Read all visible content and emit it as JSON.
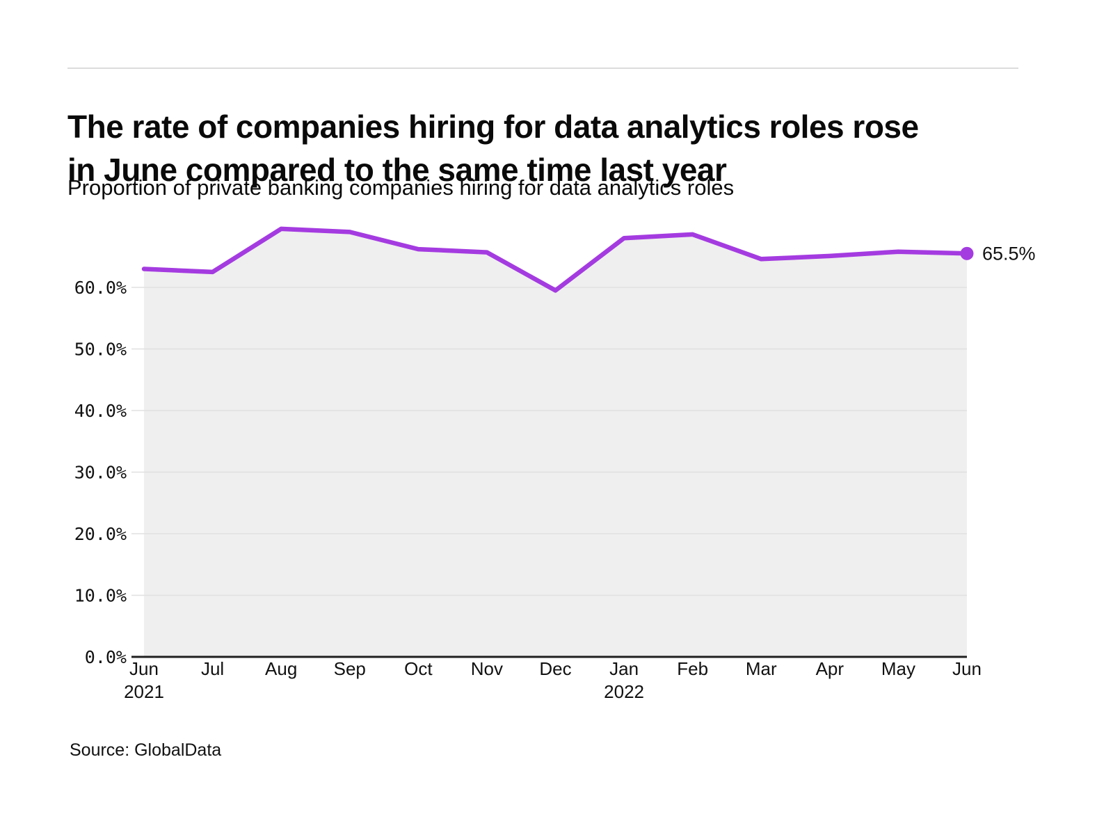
{
  "page": {
    "title_lines": [
      "The rate of companies hiring for data analytics roles rose",
      "in June compared to the same time last year"
    ],
    "subtitle": "Proportion of private banking companies hiring for data analytics roles",
    "source": "Source: GlobalData"
  },
  "chart_data": {
    "type": "line",
    "title": "The rate of companies hiring for data analytics roles rose in June compared to the same time last year",
    "subtitle": "Proportion of private banking companies hiring for data analytics roles",
    "x_labels": [
      "Jun",
      "Jul",
      "Aug",
      "Sep",
      "Oct",
      "Nov",
      "Dec",
      "Jan",
      "Feb",
      "Mar",
      "Apr",
      "May",
      "Jun"
    ],
    "x_sublabels": [
      {
        "index": 0,
        "label": "2021"
      },
      {
        "index": 7,
        "label": "2022"
      }
    ],
    "series": [
      {
        "name": "Proportion of private banking companies hiring for data analytics roles",
        "values": [
          63.0,
          62.5,
          69.5,
          69.0,
          66.2,
          65.7,
          59.5,
          68.0,
          68.6,
          64.6,
          65.1,
          65.8,
          65.5
        ]
      }
    ],
    "end_label": "65.5%",
    "y_ticks": [
      0,
      10,
      20,
      30,
      40,
      50,
      60
    ],
    "y_tick_suffix": "%",
    "ylim": [
      0,
      72
    ],
    "xlabel": "",
    "ylabel": "",
    "grid": "horizontal",
    "legend": "none",
    "colors": {
      "line": "#a43be0",
      "marker": "#a43be0",
      "area_fill": "#efefef",
      "gridline": "#e0e0e0",
      "axis_line": "#1f1f1f",
      "tick_text": "#111111",
      "end_label_text": "#111111"
    }
  }
}
